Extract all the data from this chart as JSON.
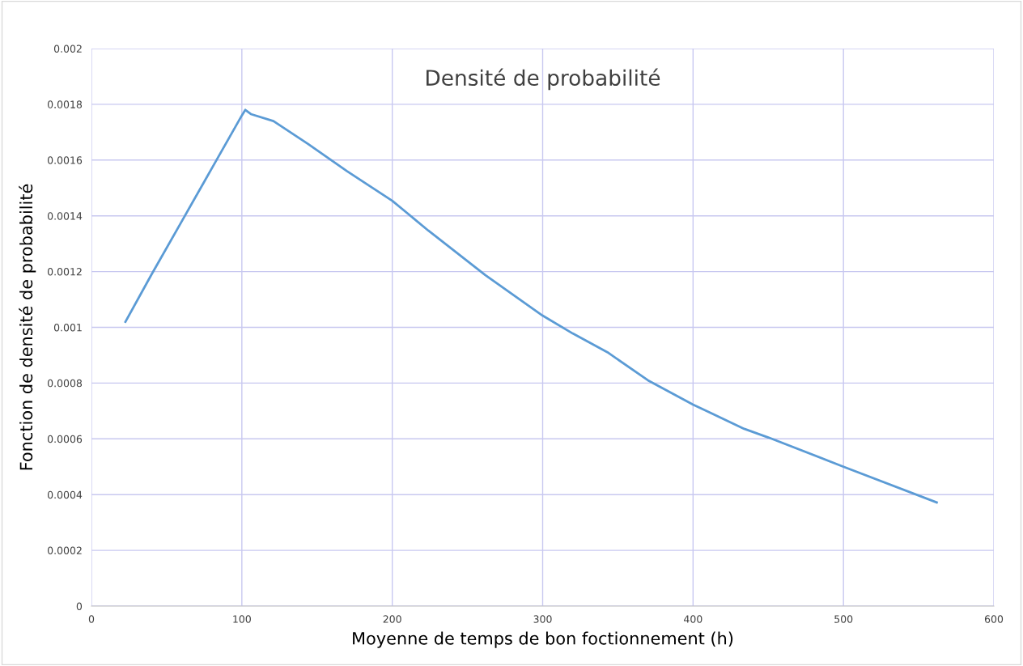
{
  "chart_data": {
    "type": "line",
    "title": "Densité de probabilité",
    "xlabel": "Moyenne de temps de bon foctionnement (h)",
    "ylabel": "Fonction de densité de probabilité",
    "x": [
      22.6,
      40,
      60,
      80,
      100,
      102.3,
      106,
      121,
      144,
      170,
      200,
      224,
      262,
      300,
      320,
      343,
      370,
      400,
      434,
      450,
      500,
      562
    ],
    "series": [
      {
        "color": "#5b9bd5",
        "values": [
          0.00102,
          0.00119,
          0.00138,
          0.00157,
          0.00176,
          0.00178,
          0.001765,
          0.00174,
          0.001658,
          0.00156,
          0.001454,
          0.001347,
          0.001187,
          0.001042,
          0.000978,
          0.000911,
          0.00081,
          0.000723,
          0.000636,
          0.000605,
          0.0005,
          0.000372
        ]
      }
    ],
    "xlim": [
      0,
      600
    ],
    "xticks": [
      0,
      100,
      200,
      300,
      400,
      500,
      600
    ],
    "ylim": [
      0,
      0.002
    ],
    "yticks": [
      {
        "value": 0,
        "label": "0"
      },
      {
        "value": 0.0002,
        "label": "0.0002"
      },
      {
        "value": 0.0004,
        "label": "0.0004"
      },
      {
        "value": 0.0006,
        "label": "0.0006"
      },
      {
        "value": 0.0008,
        "label": "0.0008"
      },
      {
        "value": 0.001,
        "label": "0.001"
      },
      {
        "value": 0.0012,
        "label": "0.0012"
      },
      {
        "value": 0.0014,
        "label": "0.0014"
      },
      {
        "value": 0.0016,
        "label": "0.0016"
      },
      {
        "value": 0.0018,
        "label": "0.0018"
      },
      {
        "value": 0.002,
        "label": "0.002"
      }
    ],
    "grid": true,
    "marker": "none",
    "line_style": "solid"
  }
}
